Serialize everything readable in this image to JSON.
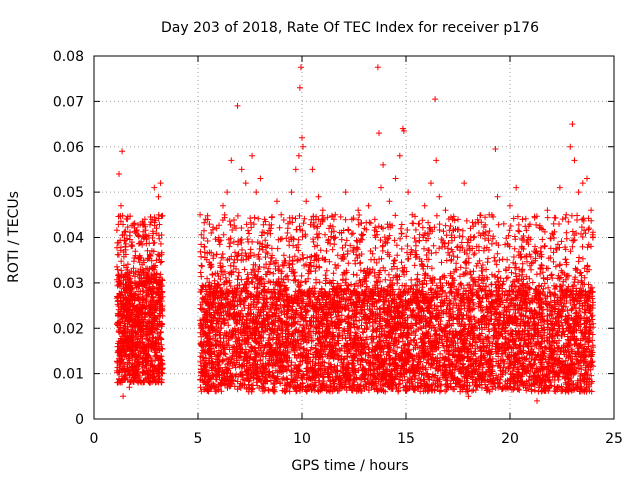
{
  "chart_data": {
    "type": "scatter",
    "title": "Day 203 of 2018, Rate Of TEC Index for receiver p176",
    "xlabel": "GPS time / hours",
    "ylabel": "ROTI / TECUs",
    "xlim": [
      0,
      25
    ],
    "ylim": [
      0,
      0.08
    ],
    "xticks": [
      0,
      5,
      10,
      15,
      20,
      25
    ],
    "xtick_labels": [
      "0",
      "5",
      "10",
      "15",
      "20",
      "25"
    ],
    "yticks": [
      0,
      0.01,
      0.02,
      0.03,
      0.04,
      0.05,
      0.06,
      0.07,
      0.08
    ],
    "ytick_labels": [
      "0",
      "0.01",
      "0.02",
      "0.03",
      "0.04",
      "0.05",
      "0.06",
      "0.07",
      "0.08"
    ],
    "grid": true,
    "marker": "+",
    "color": "#ff0000",
    "series": [
      {
        "points": [
          [
            1.2,
            0.054
          ],
          [
            1.35,
            0.059
          ],
          [
            1.3,
            0.047
          ],
          [
            1.5,
            0.038
          ],
          [
            1.4,
            0.005
          ],
          [
            1.6,
            0.032
          ],
          [
            1.8,
            0.028
          ],
          [
            2.0,
            0.041
          ],
          [
            2.2,
            0.036
          ],
          [
            2.4,
            0.03
          ],
          [
            2.6,
            0.025
          ],
          [
            2.8,
            0.044
          ],
          [
            2.9,
            0.051
          ],
          [
            3.1,
            0.049
          ],
          [
            3.2,
            0.052
          ],
          [
            3.0,
            0.035
          ],
          [
            2.7,
            0.008
          ],
          [
            1.7,
            0.007
          ],
          [
            5.1,
            0.045
          ],
          [
            5.3,
            0.038
          ],
          [
            5.6,
            0.034
          ],
          [
            5.9,
            0.042
          ],
          [
            6.0,
            0.04
          ],
          [
            6.2,
            0.047
          ],
          [
            6.4,
            0.05
          ],
          [
            6.6,
            0.057
          ],
          [
            6.9,
            0.069
          ],
          [
            7.1,
            0.055
          ],
          [
            7.3,
            0.052
          ],
          [
            7.6,
            0.058
          ],
          [
            7.8,
            0.05
          ],
          [
            8.0,
            0.053
          ],
          [
            8.2,
            0.044
          ],
          [
            8.5,
            0.042
          ],
          [
            8.8,
            0.048
          ],
          [
            9.0,
            0.045
          ],
          [
            9.3,
            0.041
          ],
          [
            9.5,
            0.05
          ],
          [
            9.7,
            0.055
          ],
          [
            9.85,
            0.058
          ],
          [
            9.9,
            0.073
          ],
          [
            9.95,
            0.0775
          ],
          [
            10.0,
            0.062
          ],
          [
            10.05,
            0.06
          ],
          [
            10.2,
            0.048
          ],
          [
            10.5,
            0.055
          ],
          [
            10.8,
            0.049
          ],
          [
            11.0,
            0.046
          ],
          [
            11.3,
            0.042
          ],
          [
            11.6,
            0.045
          ],
          [
            11.9,
            0.041
          ],
          [
            12.1,
            0.05
          ],
          [
            12.4,
            0.044
          ],
          [
            12.7,
            0.046
          ],
          [
            13.0,
            0.042
          ],
          [
            13.2,
            0.047
          ],
          [
            13.5,
            0.044
          ],
          [
            13.65,
            0.0775
          ],
          [
            13.7,
            0.063
          ],
          [
            13.8,
            0.051
          ],
          [
            13.9,
            0.056
          ],
          [
            14.2,
            0.048
          ],
          [
            14.5,
            0.053
          ],
          [
            14.7,
            0.058
          ],
          [
            14.85,
            0.064
          ],
          [
            14.9,
            0.0635
          ],
          [
            15.1,
            0.05
          ],
          [
            15.3,
            0.045
          ],
          [
            15.6,
            0.043
          ],
          [
            15.9,
            0.047
          ],
          [
            16.2,
            0.052
          ],
          [
            16.4,
            0.0705
          ],
          [
            16.45,
            0.057
          ],
          [
            16.6,
            0.049
          ],
          [
            16.9,
            0.046
          ],
          [
            17.2,
            0.04
          ],
          [
            17.5,
            0.044
          ],
          [
            17.8,
            0.052
          ],
          [
            18.1,
            0.042
          ],
          [
            18.4,
            0.038
          ],
          [
            18.7,
            0.041
          ],
          [
            19.0,
            0.045
          ],
          [
            19.3,
            0.0595
          ],
          [
            19.4,
            0.049
          ],
          [
            19.7,
            0.043
          ],
          [
            20.0,
            0.047
          ],
          [
            20.3,
            0.051
          ],
          [
            20.6,
            0.044
          ],
          [
            20.9,
            0.04
          ],
          [
            21.2,
            0.038
          ],
          [
            21.5,
            0.042
          ],
          [
            21.8,
            0.046
          ],
          [
            22.1,
            0.043
          ],
          [
            22.4,
            0.051
          ],
          [
            22.7,
            0.045
          ],
          [
            22.9,
            0.06
          ],
          [
            23.0,
            0.065
          ],
          [
            23.1,
            0.057
          ],
          [
            23.3,
            0.05
          ],
          [
            23.5,
            0.052
          ],
          [
            23.7,
            0.053
          ],
          [
            23.9,
            0.046
          ],
          [
            18.0,
            0.005
          ],
          [
            21.3,
            0.004
          ],
          [
            14.0,
            0.006
          ],
          [
            9.2,
            0.006
          ],
          [
            11.5,
            0.007
          ]
        ]
      }
    ],
    "dense_bands": [
      {
        "x": [
          1.1,
          3.3
        ],
        "base_min": 0.008,
        "base_max": 0.03,
        "peak": 0.045,
        "count": 1200
      },
      {
        "x": [
          5.1,
          24.0
        ],
        "base_min": 0.006,
        "base_max": 0.028,
        "peak": 0.045,
        "count": 7000
      }
    ]
  }
}
